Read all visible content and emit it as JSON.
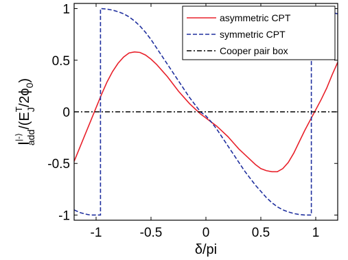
{
  "chart_data": {
    "type": "line",
    "xlabel": "δ/pi",
    "ylabel_main": "I",
    "ylabel_sup": "|-⟩",
    "ylabel_sub": "add",
    "ylabel_rest_1": "/(E",
    "ylabel_rest_sub": "J",
    "ylabel_rest_sup": "T",
    "ylabel_rest_2": "/2ϕ",
    "ylabel_rest_sub2": "0",
    "ylabel_rest_3": ")",
    "xlim": [
      -1.2,
      1.2
    ],
    "ylim": [
      -1.05,
      1.05
    ],
    "xticks": [
      -1,
      -0.5,
      0,
      0.5,
      1
    ],
    "xtick_labels": [
      "-1",
      "-0.5",
      "0",
      "0.5",
      "1"
    ],
    "yticks": [
      -1,
      -0.5,
      0,
      0.5,
      1
    ],
    "ytick_labels": [
      "-1",
      "-0.5",
      "0",
      "0.5",
      "1"
    ],
    "grid": false,
    "legend_position": "top-right",
    "series": [
      {
        "name": "asymmetric CPT",
        "color": "#e8202a",
        "style": "solid",
        "x": [
          -1.2,
          -1.15,
          -1.1,
          -1.05,
          -1.0,
          -0.95,
          -0.9,
          -0.85,
          -0.8,
          -0.75,
          -0.7,
          -0.65,
          -0.6,
          -0.55,
          -0.5,
          -0.45,
          -0.4,
          -0.35,
          -0.3,
          -0.25,
          -0.2,
          -0.15,
          -0.1,
          -0.05,
          0.0,
          0.05,
          0.1,
          0.15,
          0.2,
          0.25,
          0.3,
          0.35,
          0.4,
          0.45,
          0.5,
          0.55,
          0.6,
          0.65,
          0.7,
          0.75,
          0.8,
          0.85,
          0.9,
          0.95,
          1.0,
          1.05,
          1.1,
          1.15,
          1.2
        ],
        "y": [
          -0.48,
          -0.35,
          -0.22,
          -0.09,
          0.04,
          0.17,
          0.29,
          0.39,
          0.47,
          0.53,
          0.57,
          0.58,
          0.575,
          0.55,
          0.51,
          0.46,
          0.4,
          0.34,
          0.27,
          0.2,
          0.14,
          0.08,
          0.03,
          -0.02,
          -0.06,
          -0.1,
          -0.14,
          -0.19,
          -0.24,
          -0.3,
          -0.36,
          -0.41,
          -0.46,
          -0.51,
          -0.55,
          -0.57,
          -0.58,
          -0.58,
          -0.55,
          -0.49,
          -0.4,
          -0.29,
          -0.18,
          -0.08,
          0.02,
          0.12,
          0.23,
          0.36,
          0.48
        ]
      },
      {
        "name": "symmetric CPT",
        "color": "#1f2f9e",
        "style": "dashed",
        "x": [
          -1.2,
          -1.15,
          -1.1,
          -1.05,
          -1.0,
          -0.96,
          -0.96,
          -0.95,
          -0.9,
          -0.85,
          -0.8,
          -0.75,
          -0.7,
          -0.65,
          -0.6,
          -0.55,
          -0.5,
          -0.45,
          -0.4,
          -0.35,
          -0.3,
          -0.25,
          -0.2,
          -0.15,
          -0.1,
          -0.05,
          0.0,
          0.05,
          0.1,
          0.15,
          0.2,
          0.25,
          0.3,
          0.35,
          0.4,
          0.45,
          0.5,
          0.55,
          0.6,
          0.65,
          0.7,
          0.75,
          0.8,
          0.85,
          0.9,
          0.96,
          0.96,
          1.0,
          1.05,
          1.1,
          1.15,
          1.2
        ],
        "y": [
          -0.95,
          -0.975,
          -0.99,
          -1.0,
          -1.0,
          -1.0,
          1.0,
          1.0,
          0.995,
          0.985,
          0.97,
          0.95,
          0.92,
          0.88,
          0.83,
          0.77,
          0.7,
          0.62,
          0.54,
          0.46,
          0.38,
          0.3,
          0.22,
          0.14,
          0.07,
          0.0,
          -0.04,
          -0.1,
          -0.17,
          -0.25,
          -0.33,
          -0.41,
          -0.49,
          -0.57,
          -0.64,
          -0.71,
          -0.77,
          -0.83,
          -0.88,
          -0.92,
          -0.95,
          -0.97,
          -0.985,
          -0.995,
          -1.0,
          -1.0,
          1.0,
          1.0,
          0.99,
          0.975,
          0.96,
          0.95
        ]
      },
      {
        "name": "Cooper pair box",
        "color": "#000000",
        "style": "dashdot",
        "x": [
          -1.2,
          1.2
        ],
        "y": [
          0,
          0
        ]
      }
    ]
  }
}
